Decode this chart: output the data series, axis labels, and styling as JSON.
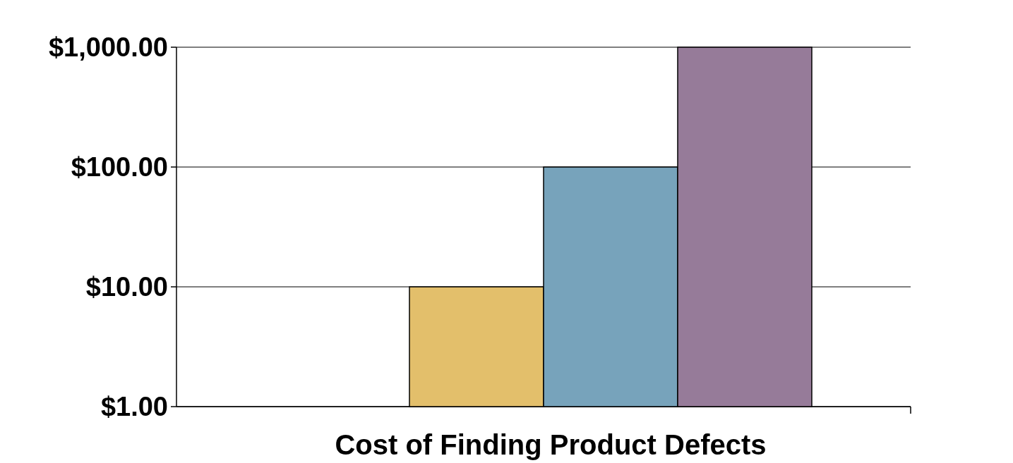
{
  "chart_data": {
    "type": "bar",
    "xlabel": "Cost of Finding Product Defects",
    "categories": [
      null,
      null,
      null,
      null
    ],
    "values": [
      1,
      10,
      100,
      1000
    ],
    "colors": [
      "#6b6b63",
      "#e3bf6b",
      "#77a3bb",
      "#967b99"
    ],
    "log": true,
    "ylim": [
      1,
      1000
    ],
    "yticks": [
      {
        "value": 1,
        "label": "$1.00"
      },
      {
        "value": 10,
        "label": "$10.00"
      },
      {
        "value": 100,
        "label": "$100.00"
      },
      {
        "value": 1000,
        "label": "$1,000.00"
      }
    ],
    "grid": "y"
  }
}
